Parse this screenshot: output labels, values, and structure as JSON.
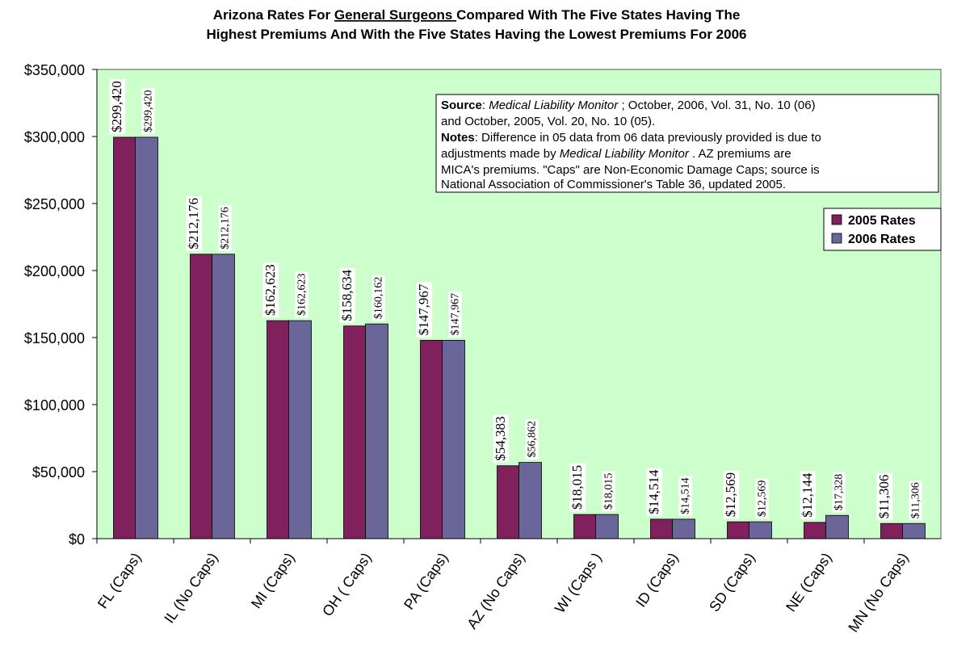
{
  "chart_data": {
    "type": "bar",
    "title": [
      "Arizona Rates For ",
      "General Surgeons ",
      "Compared With The  Five States Having The",
      "Highest Premiums And With the Five States  Having the Lowest Premiums For 2006"
    ],
    "annotation": [
      [
        "Source",
        ":  ",
        "Medical Liability Monitor",
        " ; October, 2006, Vol. 31, No. 10  (06)"
      ],
      [
        "and October, 2005, Vol. 20,  No. 10  (05)."
      ],
      [
        "Notes",
        ": Difference in 05 data from  06 data previously provided is due to"
      ],
      [
        "adjustments made by ",
        "Medical Liability Monitor",
        " .  AZ premiums are"
      ],
      [
        "MICA's premiums.    \"Caps\" are Non-Economic Damage Caps; source is"
      ],
      [
        "National Association of Commissioner's Table 36, updated 2005."
      ]
    ],
    "categories": [
      "FL (Caps)",
      "IL (No Caps)",
      "MI (Caps)",
      "OH ( Caps)",
      "PA (Caps)",
      "AZ (No Caps)",
      "WI (Caps )",
      "ID (Caps)",
      "SD (Caps)",
      "NE (Caps)",
      "MN (No Caps)"
    ],
    "series": [
      {
        "name": "2005 Rates",
        "color": "#80205c",
        "values": [
          299420,
          212176,
          162623,
          158634,
          147967,
          54383,
          18015,
          14514,
          12569,
          12144,
          11306
        ],
        "value_labels": [
          "$299,420",
          "$212,176",
          "$162,623",
          "$158,634",
          "$147,967",
          "$54,383",
          "$18,015",
          "$14,514",
          "$12,569",
          "$12,144",
          "$11,306"
        ]
      },
      {
        "name": "2006 Rates",
        "color": "#6b6699",
        "values": [
          299420,
          212176,
          162623,
          160162,
          147967,
          56862,
          18015,
          14514,
          12569,
          17328,
          11306
        ],
        "value_labels": [
          "$299,420",
          "$212,176",
          "$162,623",
          "$160,162",
          "$147,967",
          "$56,862",
          "$18,015",
          "$14,514",
          "$12,569",
          "$17,328",
          "$11,306"
        ]
      }
    ],
    "ylim": [
      0,
      350000
    ],
    "yticks": [
      {
        "value": 0,
        "label": "$0"
      },
      {
        "value": 50000,
        "label": "$50,000"
      },
      {
        "value": 100000,
        "label": "$100,000"
      },
      {
        "value": 150000,
        "label": "$150,000"
      },
      {
        "value": 200000,
        "label": "$200,000"
      },
      {
        "value": 250000,
        "label": "$250,000"
      },
      {
        "value": 300000,
        "label": "$300,000"
      },
      {
        "value": 350000,
        "label": "$350,000"
      }
    ],
    "legend": "upper right"
  }
}
